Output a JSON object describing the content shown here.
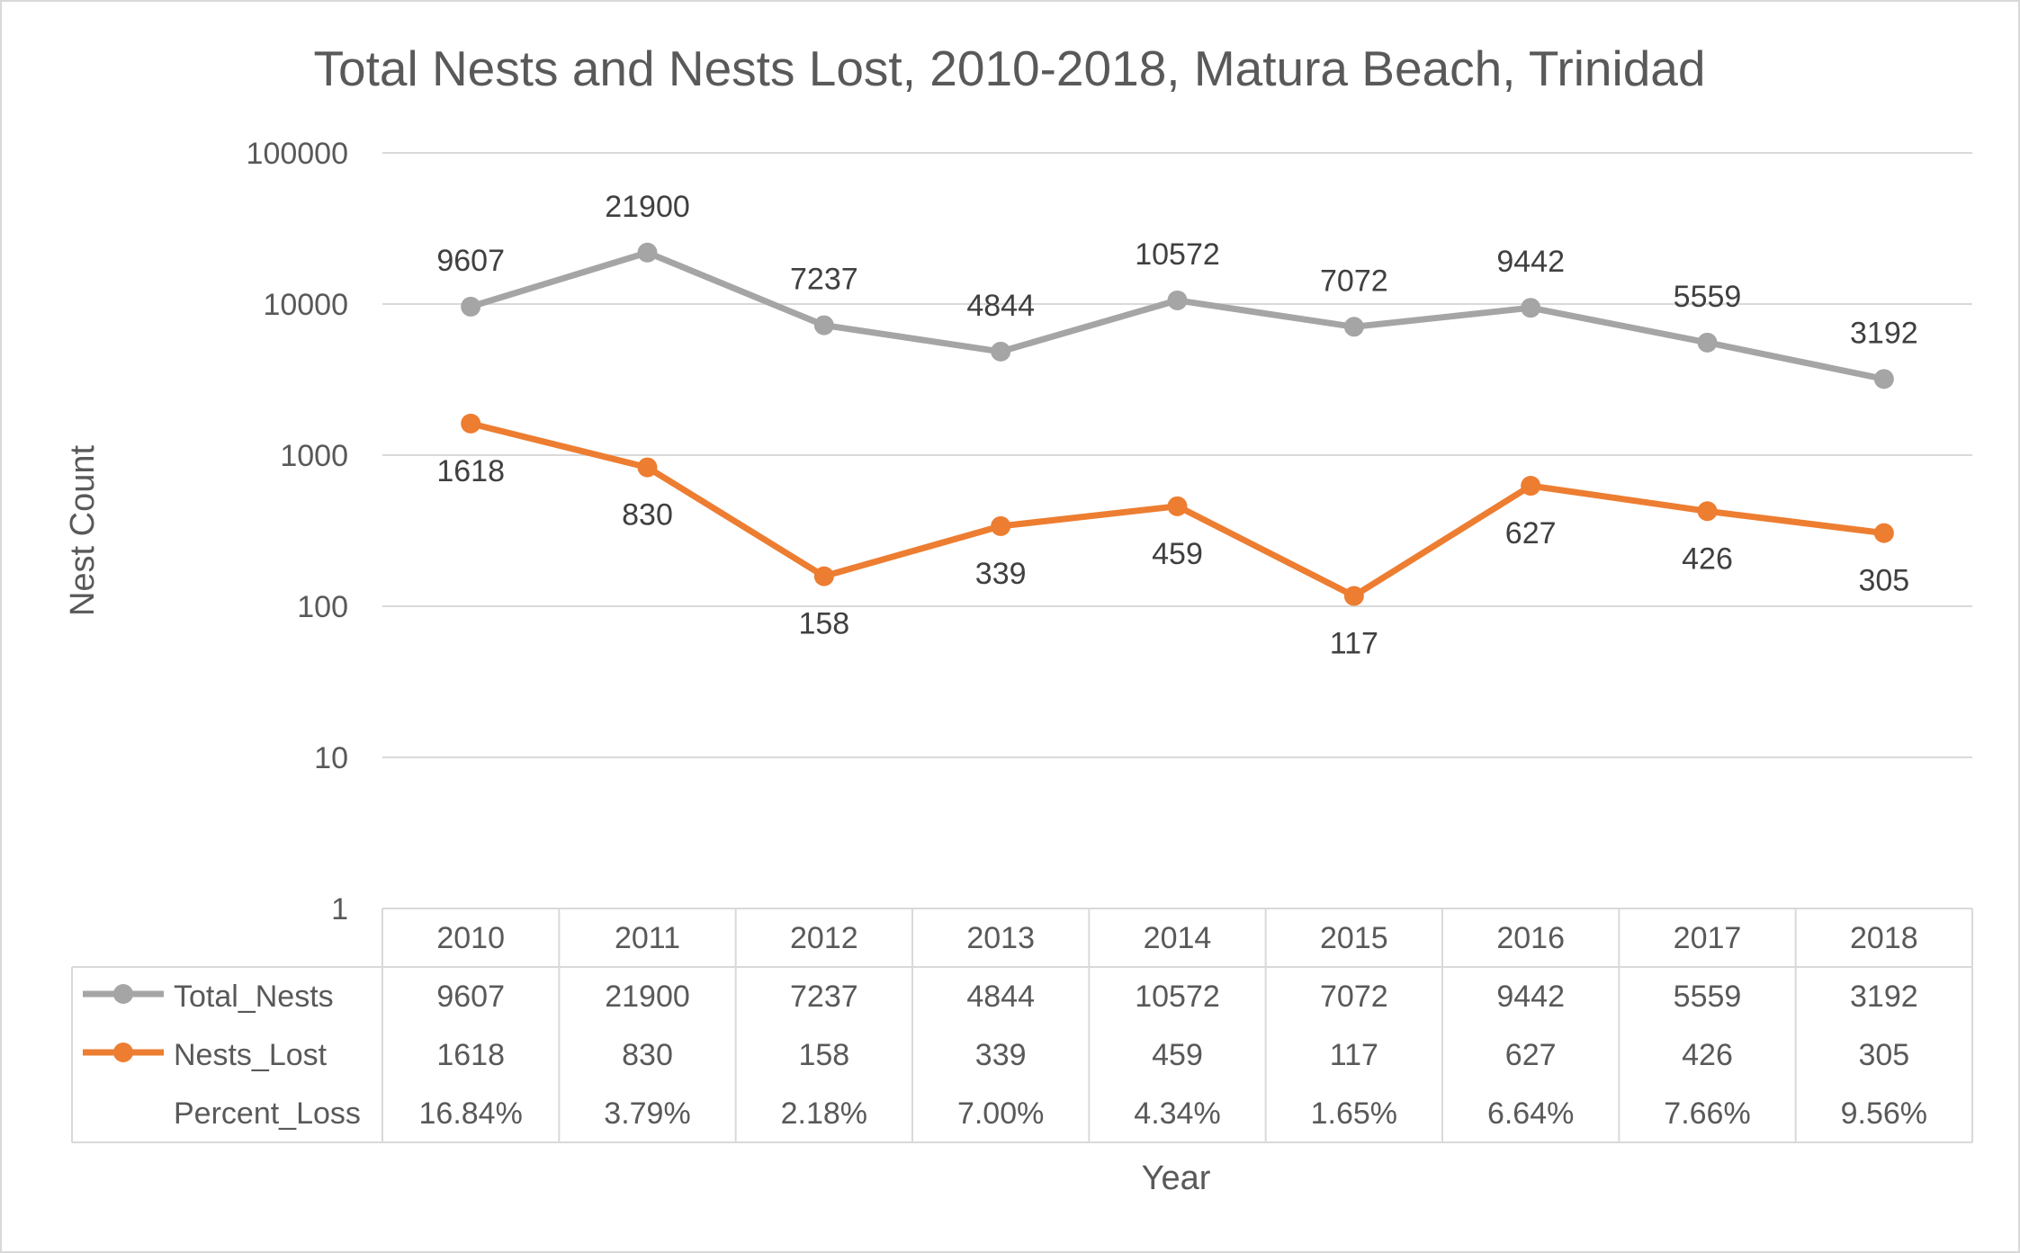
{
  "chart_data": {
    "type": "line",
    "title": "Total Nests and Nests Lost, 2010-2018, Matura Beach, Trinidad",
    "xlabel": "Year",
    "ylabel": "Nest Count",
    "y_scale": "log",
    "ylim": [
      1,
      100000
    ],
    "y_ticks": [
      "1",
      "10",
      "100",
      "1000",
      "10000",
      "100000"
    ],
    "grid": true,
    "categories": [
      "2010",
      "2011",
      "2012",
      "2013",
      "2014",
      "2015",
      "2016",
      "2017",
      "2018"
    ],
    "series": [
      {
        "name": "Total_Nests",
        "color": "#a5a5a5",
        "values": [
          9607,
          21900,
          7237,
          4844,
          10572,
          7072,
          9442,
          5559,
          3192
        ],
        "labels": [
          "9607",
          "21900",
          "7237",
          "4844",
          "10572",
          "7072",
          "9442",
          "5559",
          "3192"
        ],
        "label_position": "above"
      },
      {
        "name": "Nests_Lost",
        "color": "#ed7d31",
        "values": [
          1618,
          830,
          158,
          339,
          459,
          117,
          627,
          426,
          305
        ],
        "labels": [
          "1618",
          "830",
          "158",
          "339",
          "459",
          "117",
          "627",
          "426",
          "305"
        ],
        "label_position": "below"
      }
    ],
    "data_table": {
      "extra_rows": [
        {
          "name": "Percent_Loss",
          "values": [
            "16.84%",
            "3.79%",
            "2.18%",
            "7.00%",
            "4.34%",
            "1.65%",
            "6.64%",
            "7.66%",
            "9.56%"
          ]
        }
      ]
    }
  }
}
